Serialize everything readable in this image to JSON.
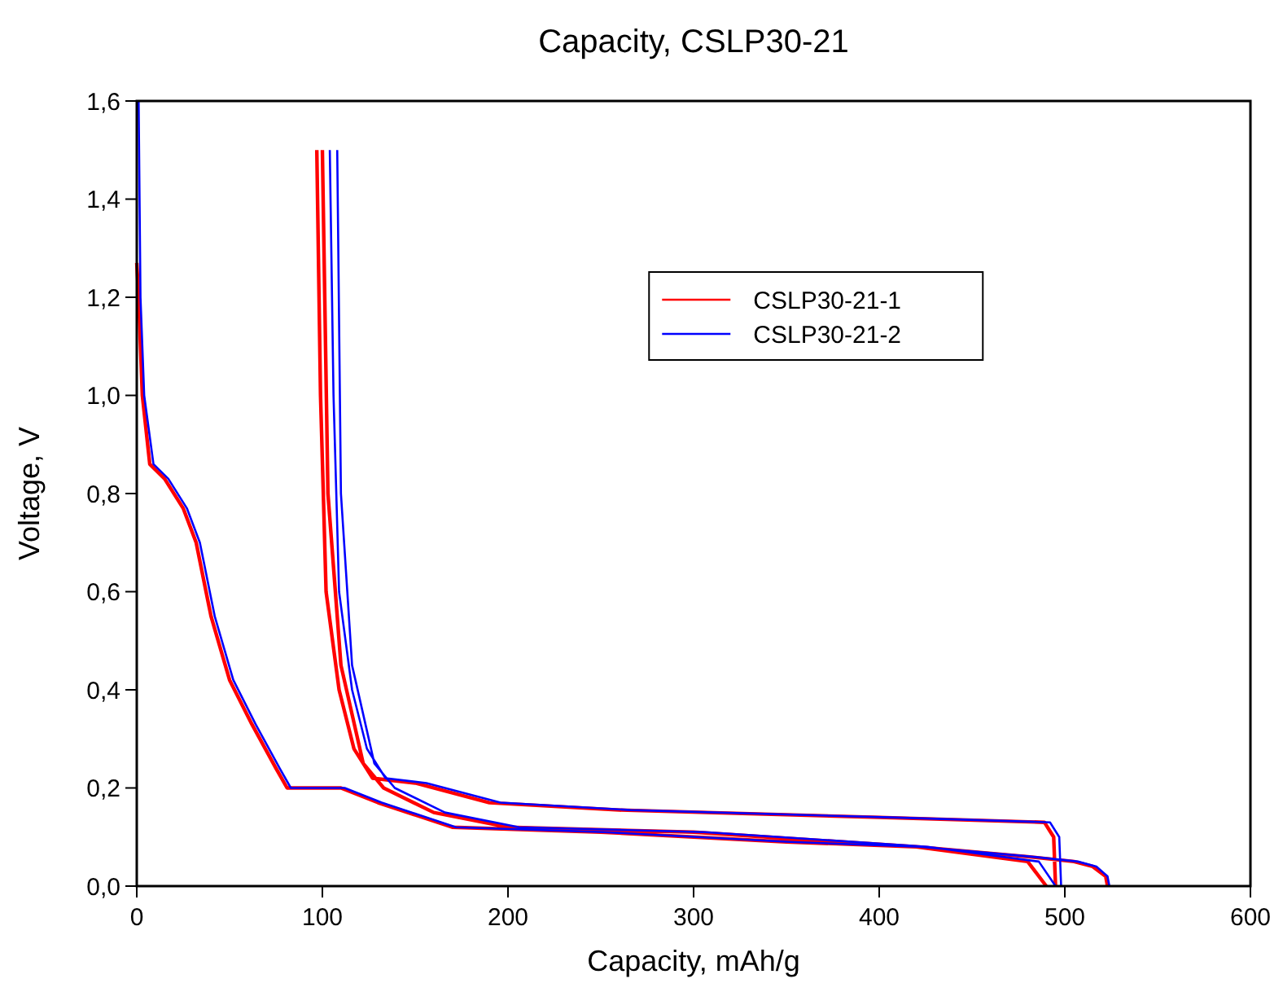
{
  "chart_data": {
    "type": "line",
    "title": "Capacity, CSLP30-21",
    "xlabel": "Capacity, mAh/g",
    "ylabel": "Voltage, V",
    "xlim": [
      0,
      600
    ],
    "xticks": [
      0,
      100,
      200,
      300,
      400,
      500,
      600
    ],
    "ylim": [
      0,
      1.6
    ],
    "yticks": [
      {
        "value": 0,
        "label": "0,0"
      },
      {
        "value": 0.2,
        "label": "0,2"
      },
      {
        "value": 0.4,
        "label": "0,4"
      },
      {
        "value": 0.6,
        "label": "0,6"
      },
      {
        "value": 0.8,
        "label": "0,8"
      },
      {
        "value": 1.0,
        "label": "1,0"
      },
      {
        "value": 1.2,
        "label": "1,2"
      },
      {
        "value": 1.4,
        "label": "1,4"
      },
      {
        "value": 1.6,
        "label": "1,6"
      }
    ],
    "grid": false,
    "legend": "top right",
    "line_style": "solid",
    "series": [
      {
        "name": "CSLP30-21-1",
        "color": "#ff0000",
        "x": [
          0,
          1,
          3,
          7,
          15,
          25,
          32,
          40,
          50,
          62,
          75,
          81,
          110,
          130,
          170,
          250,
          300,
          350,
          420,
          480,
          505,
          515,
          522,
          523,
          null,
          97,
          99,
          102,
          109,
          117,
          127,
          150,
          190,
          260,
          400,
          489,
          494,
          495,
          null,
          100,
          103,
          110,
          122,
          133,
          160,
          200,
          300,
          420,
          480,
          490
        ],
        "values": [
          1.27,
          1.2,
          1.0,
          0.86,
          0.83,
          0.77,
          0.7,
          0.55,
          0.42,
          0.33,
          0.24,
          0.2,
          0.2,
          0.17,
          0.12,
          0.11,
          0.1,
          0.09,
          0.08,
          0.06,
          0.05,
          0.04,
          0.02,
          0.0,
          null,
          1.5,
          1.0,
          0.6,
          0.4,
          0.28,
          0.22,
          0.21,
          0.17,
          0.155,
          0.14,
          0.13,
          0.1,
          0.0,
          null,
          1.5,
          0.8,
          0.45,
          0.25,
          0.2,
          0.15,
          0.12,
          0.11,
          0.08,
          0.05,
          0.0
        ]
      },
      {
        "name": "CSLP30-21-2",
        "color": "#0000ff",
        "x": [
          1,
          2,
          4,
          9,
          17,
          27,
          34,
          42,
          52,
          64,
          77,
          83,
          112,
          132,
          172,
          252,
          302,
          352,
          422,
          482,
          507,
          517,
          523,
          524,
          null,
          104,
          106,
          109,
          116,
          124,
          134,
          156,
          196,
          266,
          406,
          492,
          497,
          498,
          null,
          108,
          110,
          116,
          128,
          139,
          166,
          206,
          306,
          426,
          486,
          495
        ],
        "values": [
          1.6,
          1.2,
          1.0,
          0.86,
          0.83,
          0.77,
          0.7,
          0.55,
          0.42,
          0.33,
          0.24,
          0.2,
          0.2,
          0.17,
          0.12,
          0.11,
          0.1,
          0.09,
          0.08,
          0.06,
          0.05,
          0.04,
          0.02,
          0.0,
          null,
          1.5,
          1.0,
          0.6,
          0.4,
          0.28,
          0.22,
          0.21,
          0.17,
          0.155,
          0.14,
          0.13,
          0.1,
          0.0,
          null,
          1.5,
          0.8,
          0.45,
          0.25,
          0.2,
          0.15,
          0.12,
          0.11,
          0.08,
          0.05,
          0.0
        ]
      }
    ]
  }
}
